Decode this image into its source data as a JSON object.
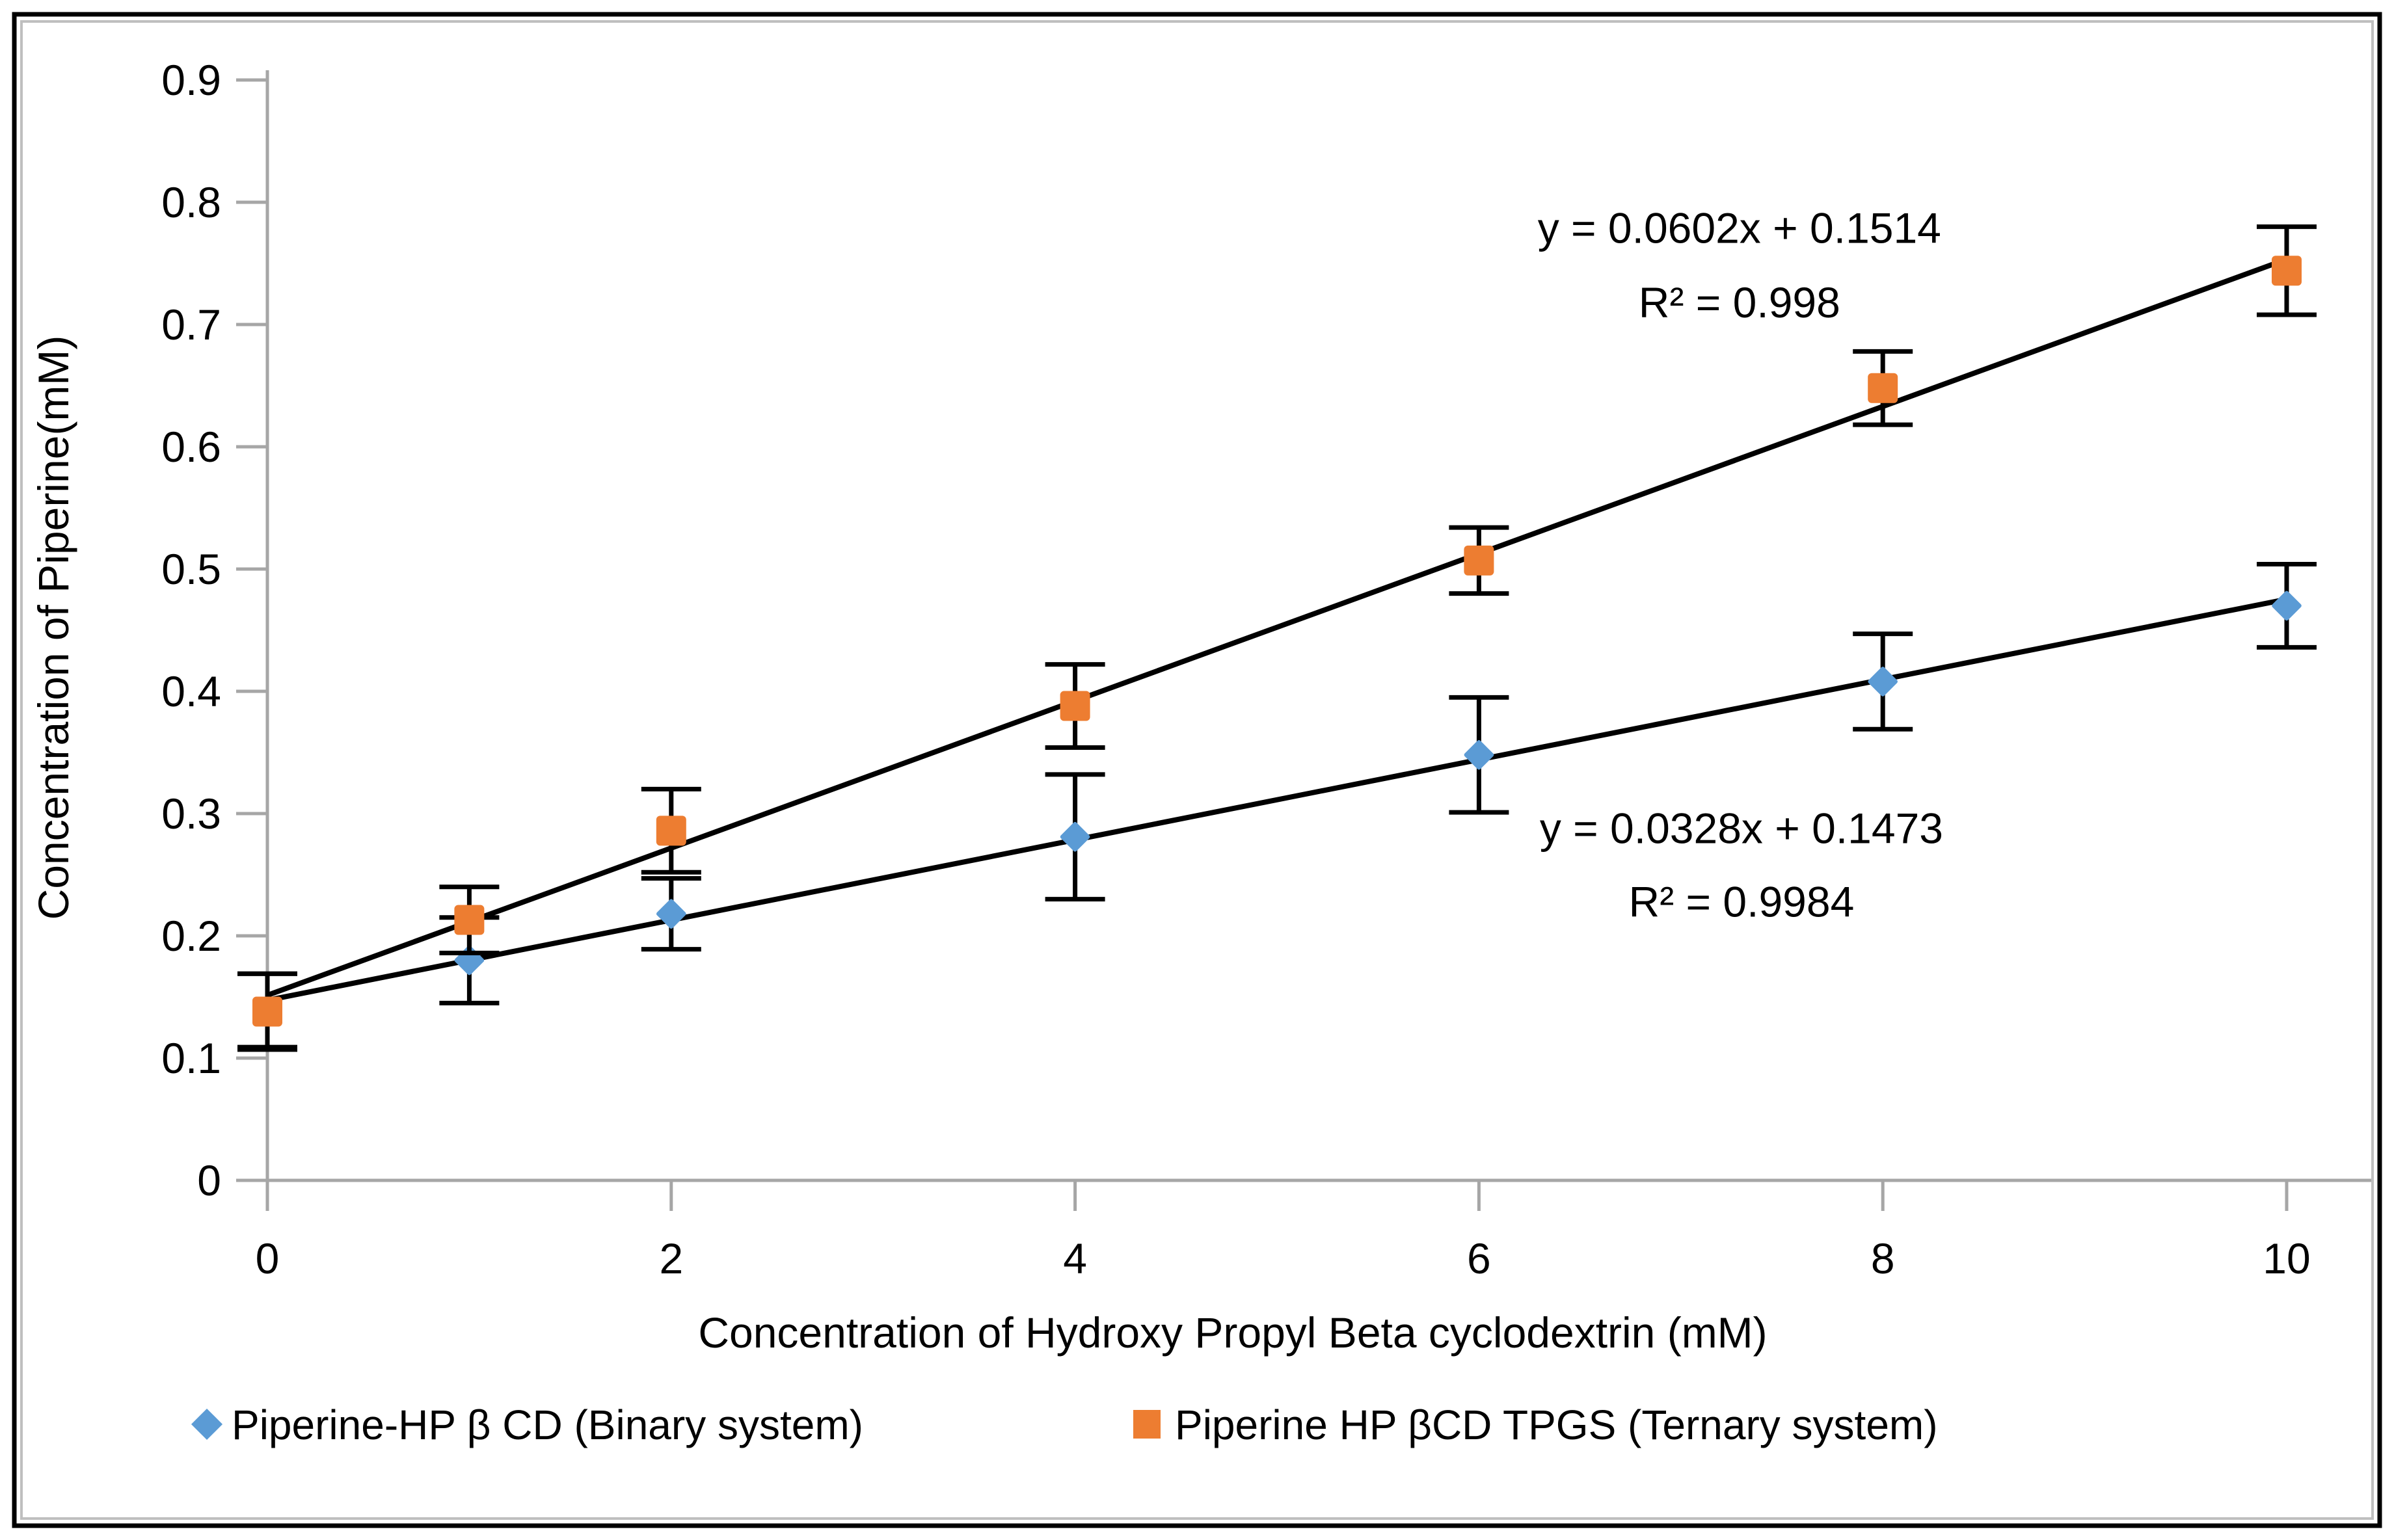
{
  "figure": {
    "background": "#FFFFFF",
    "outer_border_color": "#000000",
    "inner_border_color": "#BFBFBF",
    "axis_color": "#A6A6A6",
    "trendline_color": "#000000",
    "errorbar_color": "#000000"
  },
  "chart_data": {
    "type": "scatter",
    "title": "",
    "xlabel": "Concentration of Hydroxy Propyl Beta cyclodextrin (mM)",
    "ylabel": "Concentration of Piperine(mM)",
    "xlim": [
      0,
      10
    ],
    "ylim": [
      0,
      0.9
    ],
    "grid": false,
    "legend_position": "bottom",
    "x_ticks": [
      0,
      2,
      4,
      6,
      8,
      10
    ],
    "x_tick_labels": [
      "0",
      "2",
      "4",
      "6",
      "8",
      "10"
    ],
    "y_ticks": [
      0,
      0.1,
      0.2,
      0.3,
      0.4,
      0.5,
      0.6,
      0.7,
      0.8,
      0.9
    ],
    "y_tick_labels": [
      "0",
      "0.1",
      "0.2",
      "0.3",
      "0.4",
      "0.5",
      "0.6",
      "0.7",
      "0.8",
      "0.9"
    ],
    "series": [
      {
        "id": "binary",
        "name": "Piperine-HP β CD (Binary system)",
        "marker": "diamond",
        "color": "#5B9BD5",
        "x": [
          0,
          1,
          2,
          4,
          6,
          8,
          10
        ],
        "y": [
          0.139,
          0.18,
          0.218,
          0.281,
          0.348,
          0.408,
          0.47
        ],
        "yerr": [
          0.03,
          0.035,
          0.029,
          0.051,
          0.047,
          0.039,
          0.034
        ],
        "trendline": {
          "slope": 0.0328,
          "intercept": 0.1473,
          "x_start": 0,
          "x_end": 10
        }
      },
      {
        "id": "ternary",
        "name": "Piperine HP βCD TPGS (Ternary system)",
        "marker": "square",
        "color": "#ED7D31",
        "x": [
          0,
          1,
          2,
          4,
          6,
          8,
          10
        ],
        "y": [
          0.138,
          0.213,
          0.286,
          0.388,
          0.507,
          0.648,
          0.744
        ],
        "yerr": [
          0.031,
          0.027,
          0.034,
          0.034,
          0.027,
          0.03,
          0.036
        ],
        "trendline": {
          "slope": 0.0602,
          "intercept": 0.1514,
          "x_start": 0,
          "x_end": 10
        }
      }
    ],
    "annotations": [
      {
        "x": 7.29,
        "y": 0.779,
        "text": "y = 0.0602x + 0.1514"
      },
      {
        "x": 7.29,
        "y": 0.718,
        "text": "R² = 0.998"
      },
      {
        "x": 7.3,
        "y": 0.288,
        "text": "y = 0.0328x + 0.1473"
      },
      {
        "x": 7.3,
        "y": 0.228,
        "text": "R² = 0.9984"
      }
    ]
  }
}
